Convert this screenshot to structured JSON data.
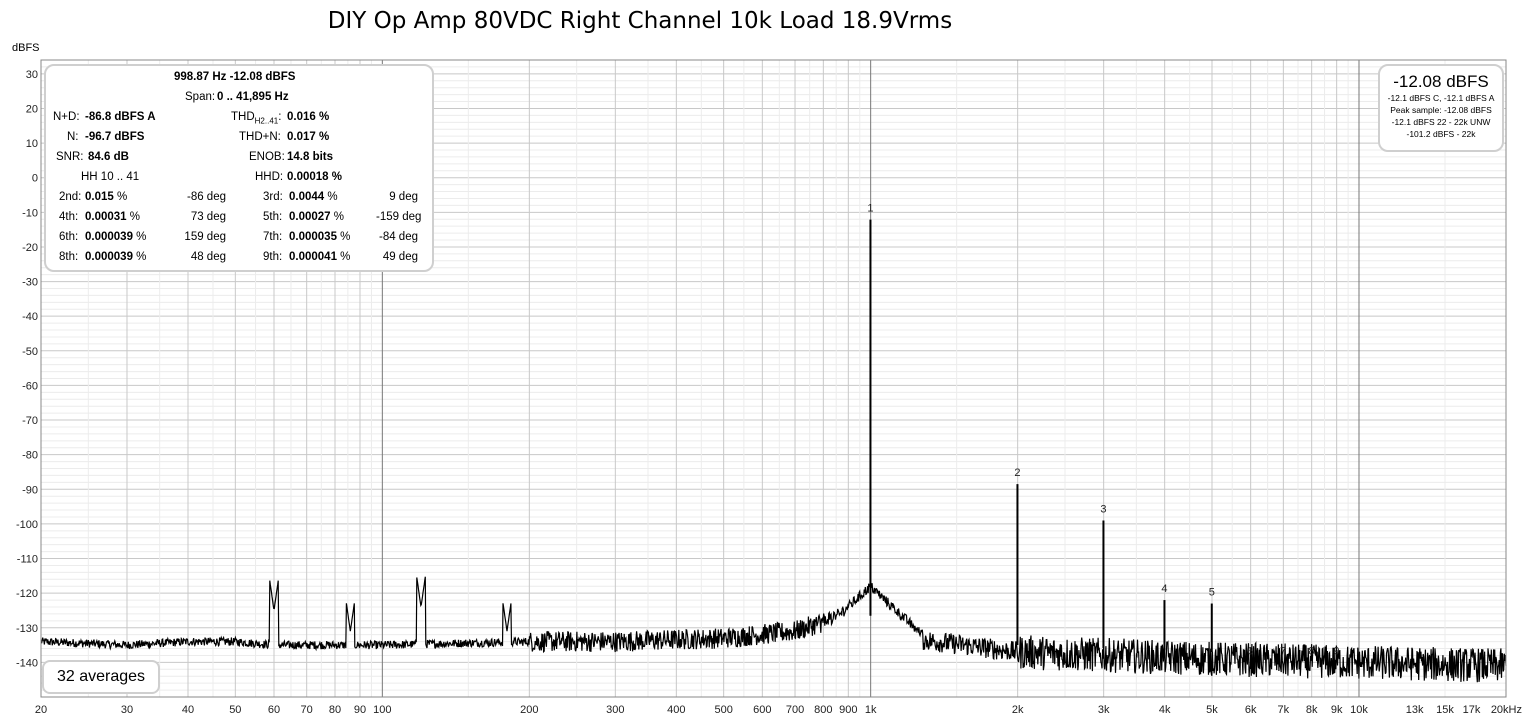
{
  "title": "DIY Op Amp 80VDC Right Channel 10k Load 18.9Vrms",
  "y_unit": "dBFS",
  "info_panel": {
    "fundamental": "998.87 Hz  -12.08 dBFS",
    "span_label": "Span:",
    "span_value": "0 .. 41,895 Hz",
    "nd_label": "N+D:",
    "nd_value": "-86.8 dBFS A",
    "thd_label": "THD",
    "thd_sub": "H2..41",
    "thd_value": "0.016 %",
    "n_label": "N:",
    "n_value": "-96.7 dBFS",
    "thdn_label": "THD+N:",
    "thdn_value": "0.017 %",
    "snr_label": "SNR:",
    "snr_value": "84.6 dB",
    "enob_label": "ENOB:",
    "enob_value": "14.8 bits",
    "hh_label": "HH 10 .. 41",
    "hhd_label": "HHD:",
    "hhd_value": "0.00018 %",
    "harmonics": [
      {
        "label": "2nd:",
        "pct": "0.015",
        "unit": "%",
        "deg": "-86 deg"
      },
      {
        "label": "3rd:",
        "pct": "0.0044",
        "unit": "%",
        "deg": "9 deg"
      },
      {
        "label": "4th:",
        "pct": "0.00031",
        "unit": "%",
        "deg": "73 deg"
      },
      {
        "label": "5th:",
        "pct": "0.00027",
        "unit": "%",
        "deg": "-159 deg"
      },
      {
        "label": "6th:",
        "pct": "0.000039",
        "unit": "%",
        "deg": "159 deg"
      },
      {
        "label": "7th:",
        "pct": "0.000035",
        "unit": "%",
        "deg": "-84 deg"
      },
      {
        "label": "8th:",
        "pct": "0.000039",
        "unit": "%",
        "deg": "48 deg"
      },
      {
        "label": "9th:",
        "pct": "0.000041",
        "unit": "%",
        "deg": "49 deg"
      }
    ]
  },
  "level_panel": {
    "big": "-12.08 dBFS",
    "lines": [
      "-12.1 dBFS C, -12.1 dBFS A",
      "Peak sample: -12.08 dBFS",
      "-12.1 dBFS 22 - 22k UNW",
      "-101.2 dBFS - 22k"
    ]
  },
  "averages": "32 averages",
  "chart_data": {
    "type": "line",
    "title": "DIY Op Amp 80VDC Right Channel 10k Load 18.9Vrms",
    "ylabel": "dBFS",
    "xscale": "log",
    "xlim": [
      20,
      20000
    ],
    "ylim": [
      -150,
      34
    ],
    "grid": true,
    "x_tick_labels": [
      {
        "f": 20,
        "t": "20"
      },
      {
        "f": 30,
        "t": "30"
      },
      {
        "f": 40,
        "t": "40"
      },
      {
        "f": 50,
        "t": "50"
      },
      {
        "f": 60,
        "t": "60"
      },
      {
        "f": 70,
        "t": "70"
      },
      {
        "f": 80,
        "t": "80"
      },
      {
        "f": 90,
        "t": "90"
      },
      {
        "f": 100,
        "t": "100"
      },
      {
        "f": 200,
        "t": "200"
      },
      {
        "f": 300,
        "t": "300"
      },
      {
        "f": 400,
        "t": "400"
      },
      {
        "f": 500,
        "t": "500"
      },
      {
        "f": 600,
        "t": "600"
      },
      {
        "f": 700,
        "t": "700"
      },
      {
        "f": 800,
        "t": "800"
      },
      {
        "f": 900,
        "t": "900"
      },
      {
        "f": 1000,
        "t": "1k"
      },
      {
        "f": 2000,
        "t": "2k"
      },
      {
        "f": 3000,
        "t": "3k"
      },
      {
        "f": 4000,
        "t": "4k"
      },
      {
        "f": 5000,
        "t": "5k"
      },
      {
        "f": 6000,
        "t": "6k"
      },
      {
        "f": 7000,
        "t": "7k"
      },
      {
        "f": 8000,
        "t": "8k"
      },
      {
        "f": 9000,
        "t": "9k"
      },
      {
        "f": 10000,
        "t": "10k"
      },
      {
        "f": 13000,
        "t": "13k"
      },
      {
        "f": 15000,
        "t": "15k"
      },
      {
        "f": 17000,
        "t": "17k"
      },
      {
        "f": 20000,
        "t": "20kHz"
      }
    ],
    "y_ticks": [
      30,
      20,
      10,
      0,
      -10,
      -20,
      -30,
      -40,
      -50,
      -60,
      -70,
      -80,
      -90,
      -100,
      -110,
      -120,
      -130,
      -140
    ],
    "noise_floor": [
      {
        "f": 20,
        "db": -134
      },
      {
        "f": 30,
        "db": -135
      },
      {
        "f": 40,
        "db": -134
      },
      {
        "f": 50,
        "db": -134
      },
      {
        "f": 60,
        "db": -135
      },
      {
        "f": 100,
        "db": -135
      },
      {
        "f": 200,
        "db": -134
      },
      {
        "f": 300,
        "db": -134
      },
      {
        "f": 500,
        "db": -133
      },
      {
        "f": 700,
        "db": -131
      },
      {
        "f": 900,
        "db": -126
      },
      {
        "f": 1200,
        "db": -133
      },
      {
        "f": 2000,
        "db": -137
      },
      {
        "f": 5000,
        "db": -139
      },
      {
        "f": 10000,
        "db": -140
      },
      {
        "f": 20000,
        "db": -141
      }
    ],
    "spurs": [
      {
        "f": 60,
        "db": -125
      },
      {
        "f": 120,
        "db": -124
      },
      {
        "f": 180,
        "db": -131
      },
      {
        "f": 86,
        "db": -131
      }
    ],
    "harmonic_peaks": [
      {
        "n": "1",
        "f": 999,
        "db": -12.1
      },
      {
        "n": "2",
        "f": 1998,
        "db": -88.5
      },
      {
        "n": "3",
        "f": 2997,
        "db": -99
      },
      {
        "n": "4",
        "f": 3996,
        "db": -122
      },
      {
        "n": "5",
        "f": 4995,
        "db": -123
      },
      {
        "n": "6",
        "f": 5994,
        "db": -140
      },
      {
        "n": "7",
        "f": 6993,
        "db": -140
      },
      {
        "n": "8",
        "f": 7992,
        "db": -140
      },
      {
        "n": "9",
        "f": 8991,
        "db": -140
      }
    ]
  }
}
